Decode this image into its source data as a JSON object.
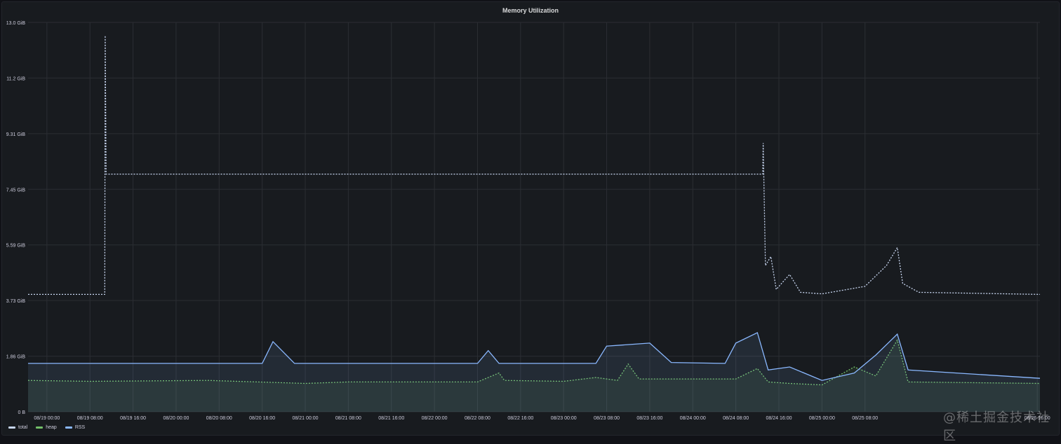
{
  "panel": {
    "title": "Memory Utilization"
  },
  "watermark": "@稀土掘金技术社区",
  "chart_data": {
    "type": "line",
    "title": "Memory Utilization",
    "xlabel": "",
    "ylabel": "",
    "x_start": "08/18 20:30",
    "x_end": "08/26 16:30",
    "x_ticks": [
      "08/19 00:00",
      "08/19 08:00",
      "08/19 16:00",
      "08/20 00:00",
      "08/20 08:00",
      "08/20 16:00",
      "08/21 00:00",
      "08/21 08:00",
      "08/21 16:00",
      "08/22 00:00",
      "08/22 08:00",
      "08/22 16:00",
      "08/23 00:00",
      "08/23 08:00",
      "08/23 16:00",
      "08/24 00:00",
      "08/24 08:00",
      "08/24 16:00",
      "08/25 00:00",
      "08/25 08:00",
      "08/26 16:00"
    ],
    "y_ticks": [
      "0 B",
      "1.86 GiB",
      "3.73 GiB",
      "5.59 GiB",
      "7.45 GiB",
      "9.31 GiB",
      "11.2 GiB",
      "13.0 GiB"
    ],
    "ylim": [
      0,
      13.04
    ],
    "grid": true,
    "legend_position": "bottom-left",
    "series": [
      {
        "name": "total",
        "color": "#c8d6f0",
        "style": "dotted",
        "points": [
          [
            "08/18 20:30",
            3.93
          ],
          [
            "08/19 05:00",
            3.93
          ],
          [
            "08/19 10:45",
            3.93
          ],
          [
            "08/19 10:50",
            12.6
          ],
          [
            "08/19 11:00",
            7.96
          ],
          [
            "08/24 13:00",
            7.96
          ],
          [
            "08/24 13:05",
            9.0
          ],
          [
            "08/24 13:30",
            4.9
          ],
          [
            "08/24 14:30",
            5.2
          ],
          [
            "08/24 15:30",
            4.1
          ],
          [
            "08/24 18:00",
            4.6
          ],
          [
            "08/24 20:00",
            4.0
          ],
          [
            "08/25 00:00",
            3.95
          ],
          [
            "08/25 08:00",
            4.2
          ],
          [
            "08/25 12:00",
            4.9
          ],
          [
            "08/25 14:00",
            5.5
          ],
          [
            "08/25 15:00",
            4.3
          ],
          [
            "08/25 18:00",
            4.0
          ],
          [
            "08/26 16:30",
            3.93
          ]
        ]
      },
      {
        "name": "heap",
        "color": "#73bf69",
        "style": "dotted",
        "points": [
          [
            "08/18 20:30",
            1.05
          ],
          [
            "08/19 08:00",
            1.02
          ],
          [
            "08/20 06:00",
            1.05
          ],
          [
            "08/21 00:00",
            0.95
          ],
          [
            "08/21 08:00",
            1.0
          ],
          [
            "08/22 08:00",
            1.0
          ],
          [
            "08/22 12:00",
            1.3
          ],
          [
            "08/22 13:00",
            1.05
          ],
          [
            "08/23 00:00",
            1.02
          ],
          [
            "08/23 06:00",
            1.15
          ],
          [
            "08/23 10:00",
            1.05
          ],
          [
            "08/23 12:00",
            1.6
          ],
          [
            "08/23 14:00",
            1.1
          ],
          [
            "08/24 08:00",
            1.1
          ],
          [
            "08/24 12:00",
            1.45
          ],
          [
            "08/24 14:00",
            1.0
          ],
          [
            "08/24 18:00",
            0.95
          ],
          [
            "08/25 00:00",
            0.9
          ],
          [
            "08/25 06:00",
            1.5
          ],
          [
            "08/25 10:00",
            1.2
          ],
          [
            "08/25 14:00",
            2.4
          ],
          [
            "08/25 16:00",
            1.0
          ],
          [
            "08/26 16:30",
            0.95
          ]
        ]
      },
      {
        "name": "RSS",
        "color": "#8ab8ff",
        "style": "solid",
        "points": [
          [
            "08/18 20:30",
            1.62
          ],
          [
            "08/20 16:00",
            1.62
          ],
          [
            "08/20 18:00",
            2.35
          ],
          [
            "08/20 22:00",
            1.62
          ],
          [
            "08/21 08:00",
            1.62
          ],
          [
            "08/22 08:00",
            1.62
          ],
          [
            "08/22 10:00",
            2.05
          ],
          [
            "08/22 12:00",
            1.62
          ],
          [
            "08/23 06:00",
            1.62
          ],
          [
            "08/23 08:00",
            2.2
          ],
          [
            "08/23 16:00",
            2.3
          ],
          [
            "08/23 20:00",
            1.65
          ],
          [
            "08/24 06:00",
            1.62
          ],
          [
            "08/24 08:00",
            2.3
          ],
          [
            "08/24 12:00",
            2.65
          ],
          [
            "08/24 14:00",
            1.4
          ],
          [
            "08/24 18:00",
            1.5
          ],
          [
            "08/25 00:00",
            1.05
          ],
          [
            "08/25 06:00",
            1.3
          ],
          [
            "08/25 10:00",
            1.9
          ],
          [
            "08/25 14:00",
            2.6
          ],
          [
            "08/25 16:00",
            1.4
          ],
          [
            "08/26 16:30",
            1.12
          ]
        ]
      }
    ]
  }
}
